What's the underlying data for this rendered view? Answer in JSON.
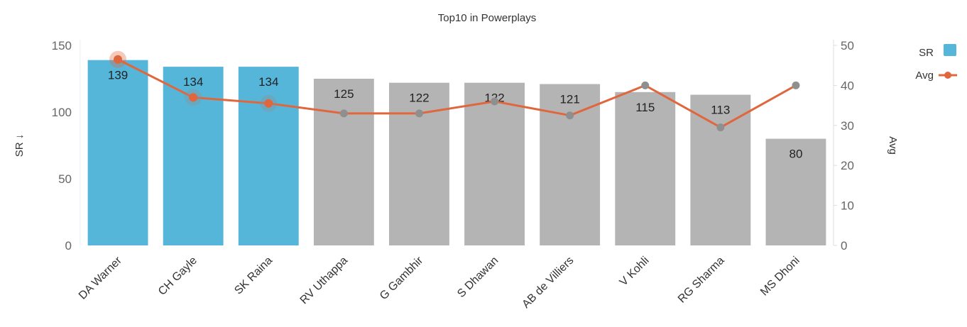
{
  "chart_data": {
    "type": "bar",
    "title": "Top10 in Powerplays",
    "categories": [
      "DA Warner",
      "CH Gayle",
      "SK Raina",
      "RV Uthappa",
      "G Gambhir",
      "S Dhawan",
      "AB de Villiers",
      "V Kohli",
      "RG Sharma",
      "MS Dhoni"
    ],
    "series": [
      {
        "name": "SR",
        "type": "bar",
        "axis": "left",
        "values": [
          139,
          134,
          134,
          125,
          122,
          122,
          121,
          115,
          113,
          80
        ],
        "highlighted": [
          true,
          true,
          true,
          false,
          false,
          false,
          false,
          false,
          false,
          false
        ]
      },
      {
        "name": "Avg",
        "type": "line",
        "axis": "right",
        "values": [
          46.5,
          37,
          35.5,
          33,
          33,
          36,
          32.5,
          40,
          29.5,
          40
        ]
      }
    ],
    "data_labels": [
      "139",
      "134",
      "134",
      "125",
      "122",
      "122",
      "121",
      "115",
      "113",
      "80"
    ],
    "ylabel": "SR ↓",
    "y2label": "Avg",
    "ylim": [
      0,
      150
    ],
    "y2lim": [
      0,
      50
    ],
    "yticks": [
      "0",
      "50",
      "100",
      "150"
    ],
    "y2ticks": [
      "0",
      "10",
      "20",
      "30",
      "40",
      "50"
    ],
    "legend_position": "top-right",
    "grid": false,
    "colors": {
      "highlight": "#55b6da",
      "muted": "#b4b4b4",
      "line": "#e0673d",
      "muted_marker": "#8f8f8f",
      "axis_text": "#666666",
      "label_text": "#222222",
      "axis_line": "#dddddd"
    }
  }
}
